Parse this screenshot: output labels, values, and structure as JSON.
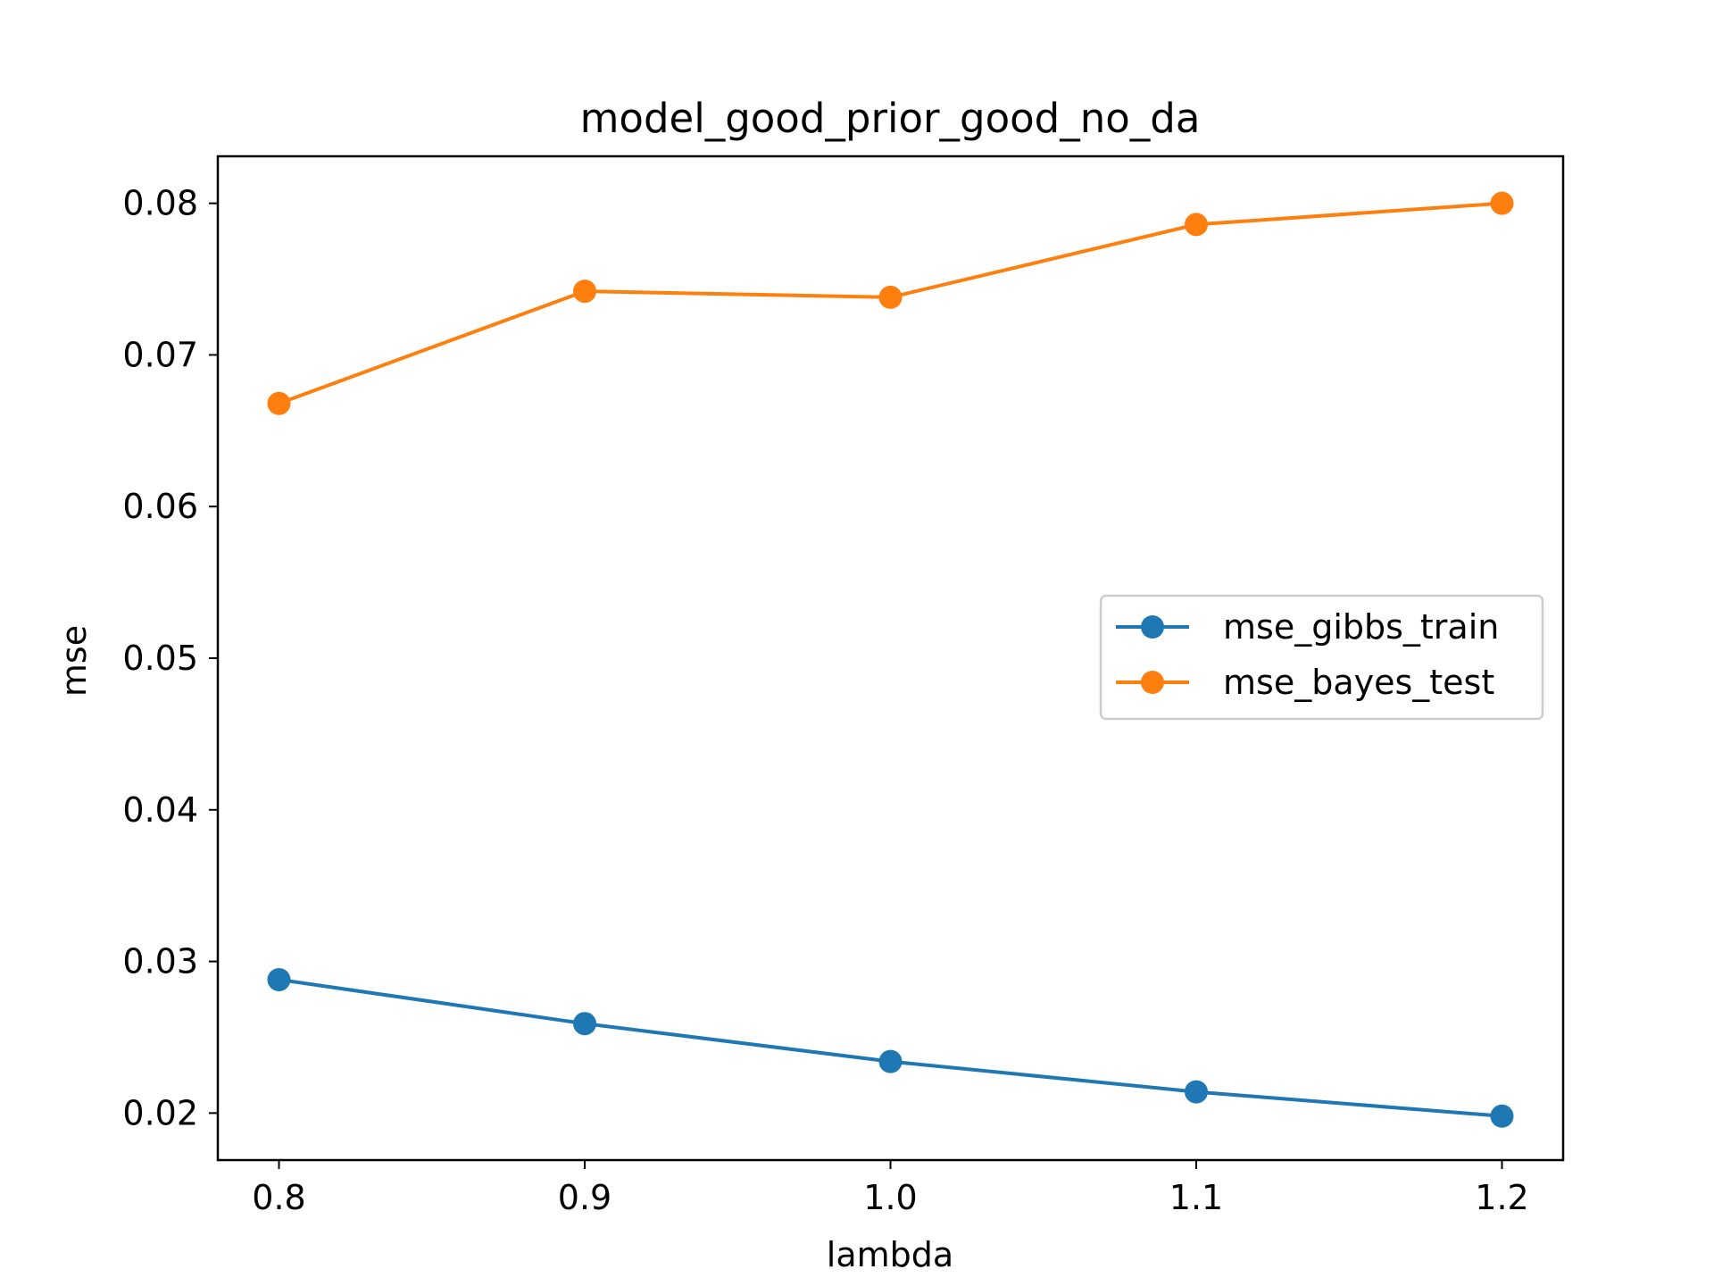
{
  "chart_data": {
    "type": "line",
    "title": "model_good_prior_good_no_da",
    "xlabel": "lambda",
    "ylabel": "mse",
    "x": [
      0.8,
      0.9,
      1.0,
      1.1,
      1.2
    ],
    "xticks": [
      "0.8",
      "0.9",
      "1.0",
      "1.1",
      "1.2"
    ],
    "yticks": [
      "0.02",
      "0.03",
      "0.04",
      "0.05",
      "0.06",
      "0.07",
      "0.08"
    ],
    "ytick_values": [
      0.02,
      0.03,
      0.04,
      0.05,
      0.06,
      0.07,
      0.08
    ],
    "xlim": [
      0.78,
      1.22
    ],
    "ylim": [
      0.0169,
      0.0831
    ],
    "grid": false,
    "legend_position": "center-right",
    "series": [
      {
        "name": "mse_gibbs_train",
        "color": "#1f77b4",
        "marker": "circle",
        "values": [
          0.0288,
          0.0259,
          0.0234,
          0.0214,
          0.0198
        ]
      },
      {
        "name": "mse_bayes_test",
        "color": "#ff7f0e",
        "marker": "circle",
        "values": [
          0.0668,
          0.0742,
          0.0738,
          0.0786,
          0.08
        ]
      }
    ]
  }
}
